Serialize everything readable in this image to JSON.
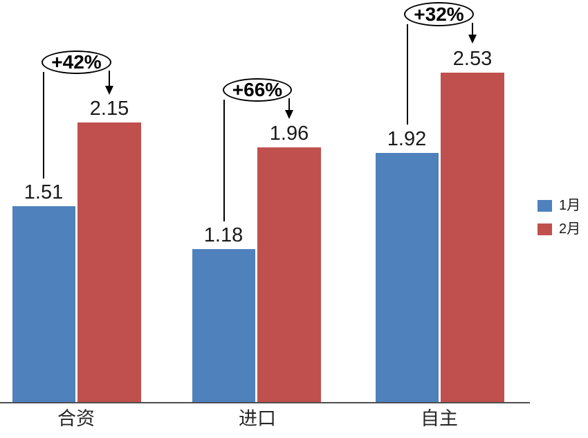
{
  "chart_data": {
    "type": "bar",
    "categories": [
      "合资",
      "进口",
      "自主"
    ],
    "series": [
      {
        "name": "1月",
        "color": "#4F81BD",
        "values": [
          1.51,
          1.18,
          1.92
        ]
      },
      {
        "name": "2月",
        "color": "#C0504D",
        "values": [
          2.15,
          1.96,
          2.53
        ]
      }
    ],
    "annotations": [
      {
        "category": "合资",
        "label": "+42%"
      },
      {
        "category": "进口",
        "label": "+66%"
      },
      {
        "category": "自主",
        "label": "+32%"
      }
    ],
    "title": "",
    "xlabel": "",
    "ylabel": "",
    "ylim": [
      0,
      2.8
    ],
    "grid": false,
    "legend_position": "right",
    "axis_line_color": "#4d4d4d"
  },
  "legend": {
    "items": [
      {
        "label": "1月",
        "color": "#4F81BD"
      },
      {
        "label": "2月",
        "color": "#C0504D"
      }
    ]
  }
}
